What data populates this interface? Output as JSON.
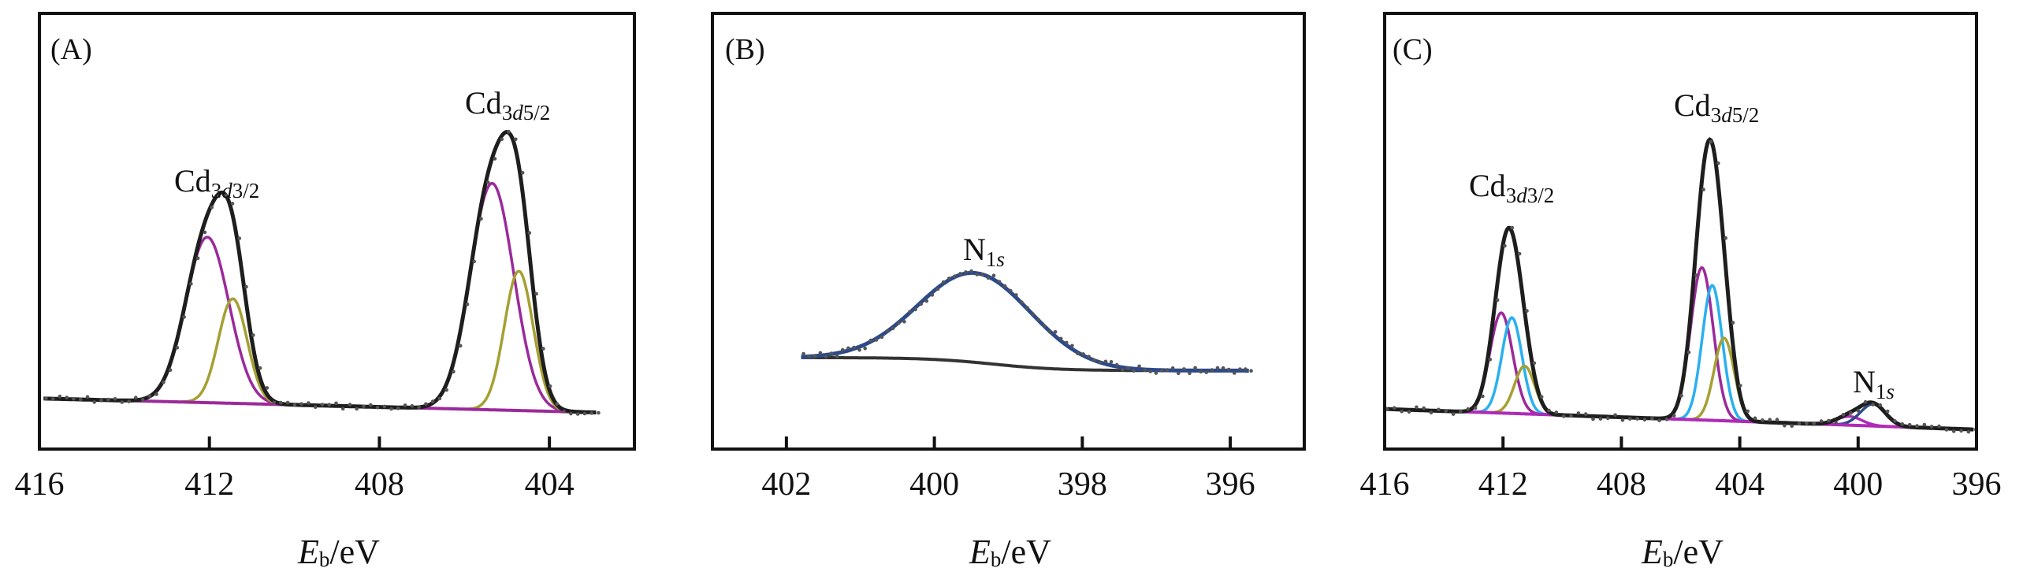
{
  "chart_data": [
    {
      "type": "line",
      "panel_label": "(A)",
      "xlabel": {
        "main": "E",
        "sub": "b",
        "unit": "/eV"
      },
      "xlim": [
        416,
        402
      ],
      "xticks": [
        416,
        412,
        408,
        404
      ],
      "ylim": [
        0,
        1
      ],
      "y_axis": "unlabeled intensity (normalized)",
      "grid": false,
      "envelope_color": "#1e1e1e",
      "envelope_range": [
        415.9,
        402.9
      ],
      "background": {
        "color": "#9b2a9b",
        "type": "linear",
        "start": 0.116,
        "end": 0.084
      },
      "components": [
        {
          "color": "#9b2a9b",
          "center": 412.05,
          "height": 0.38,
          "fwhm": 1.2
        },
        {
          "color": "#a5a032",
          "center": 411.45,
          "height": 0.24,
          "fwhm": 0.8
        },
        {
          "color": "#9b2a9b",
          "center": 405.35,
          "height": 0.52,
          "fwhm": 1.2
        },
        {
          "color": "#a5a032",
          "center": 404.72,
          "height": 0.32,
          "fwhm": 0.8
        }
      ],
      "annotations": [
        {
          "main": "Cd",
          "sub_pre": "3",
          "sub_ital": "d",
          "sub_post": "3/2"
        },
        {
          "main": "Cd",
          "sub_pre": "3",
          "sub_ital": "d",
          "sub_post": "5/2"
        }
      ]
    },
    {
      "type": "line",
      "panel_label": "(B)",
      "xlabel": {
        "main": "E",
        "sub": "b",
        "unit": "/eV"
      },
      "xlim": [
        403,
        395
      ],
      "xticks": [
        402,
        400,
        398,
        396
      ],
      "ylim": [
        0,
        1
      ],
      "y_axis": "unlabeled intensity (normalized)",
      "grid": false,
      "envelope_color": "#2c4a8a",
      "envelope_range": [
        401.8,
        395.75
      ],
      "background": {
        "color": "#333333",
        "type": "shirley",
        "start": 0.21,
        "end": 0.18,
        "step_center": 399.2
      },
      "components": [
        {
          "color": "#2c4a8a",
          "center": 399.45,
          "height": 0.205,
          "fwhm": 1.8
        }
      ],
      "annotations": [
        {
          "main": "N",
          "sub_pre": "1",
          "sub_ital": "s",
          "sub_post": ""
        }
      ]
    },
    {
      "type": "line",
      "panel_label": "(C)",
      "xlabel": {
        "main": "E",
        "sub": "b",
        "unit": "/eV"
      },
      "xlim": [
        416,
        396
      ],
      "xticks": [
        416,
        412,
        408,
        404,
        400,
        396
      ],
      "ylim": [
        0,
        1
      ],
      "y_axis": "unlabeled intensity (normalized)",
      "grid": false,
      "envelope_color": "#1e1e1e",
      "envelope_range": [
        416,
        396.1
      ],
      "background": {
        "color": "#b02ab8",
        "type": "linear",
        "start": 0.092,
        "end": 0.045
      },
      "components": [
        {
          "color": "#9b2a9b",
          "center": 412.06,
          "height": 0.23,
          "fwhm": 0.9
        },
        {
          "color": "#2ab0f0",
          "center": 411.7,
          "height": 0.22,
          "fwhm": 0.8
        },
        {
          "color": "#a5a032",
          "center": 411.27,
          "height": 0.11,
          "fwhm": 0.8
        },
        {
          "color": "#9b2a9b",
          "center": 405.28,
          "height": 0.35,
          "fwhm": 0.9
        },
        {
          "color": "#2ab0f0",
          "center": 404.93,
          "height": 0.31,
          "fwhm": 0.8
        },
        {
          "color": "#a5a032",
          "center": 404.53,
          "height": 0.19,
          "fwhm": 0.8
        },
        {
          "color": "#b02ab8",
          "center": 400.3,
          "height": 0.02,
          "fwhm": 1.0
        },
        {
          "color": "#2c4a8a",
          "center": 399.5,
          "height": 0.05,
          "fwhm": 1.0
        }
      ],
      "annotations": [
        {
          "main": "Cd",
          "sub_pre": "3",
          "sub_ital": "d",
          "sub_post": "3/2"
        },
        {
          "main": "Cd",
          "sub_pre": "3",
          "sub_ital": "d",
          "sub_post": "5/2"
        },
        {
          "main": "N",
          "sub_pre": "1",
          "sub_ital": "s",
          "sub_post": ""
        }
      ]
    }
  ]
}
